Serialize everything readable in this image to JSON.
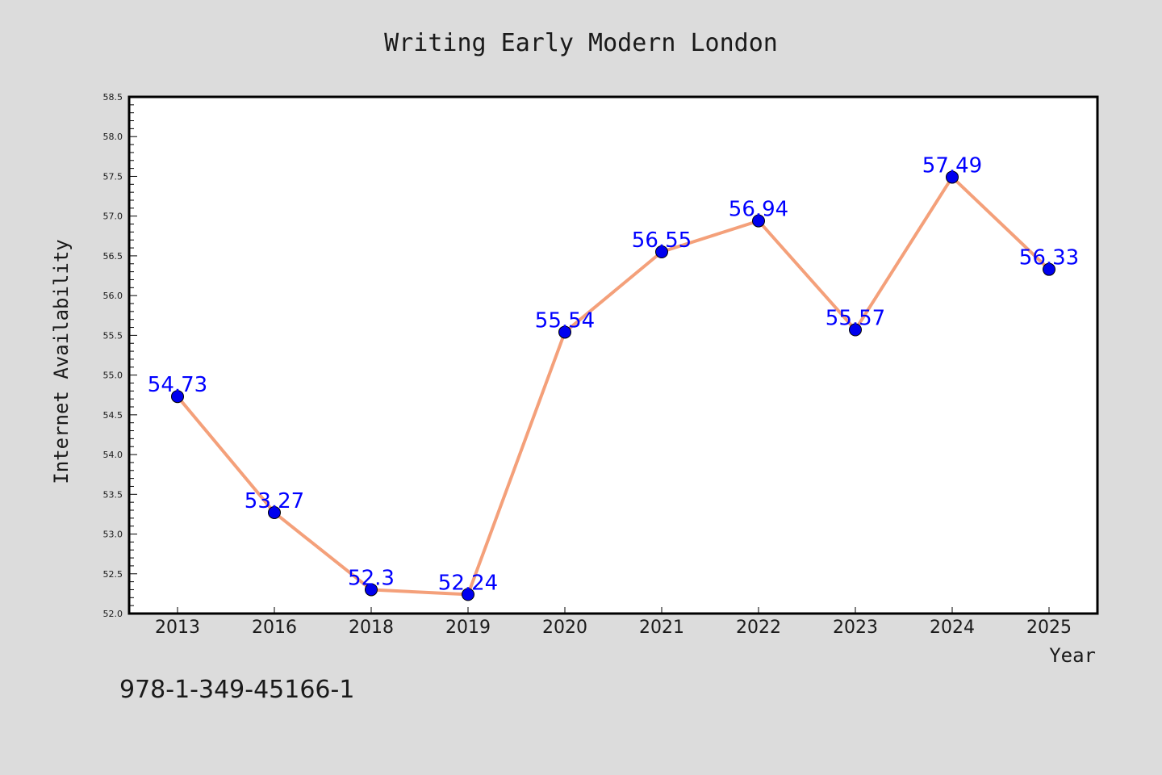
{
  "colors": {
    "background": "#dcdcdc",
    "plot_background": "#ffffff",
    "line": "#f4a07a",
    "marker": "#0000ee",
    "marker_edge": "#000000",
    "data_label": "#0000ff",
    "text": "#1a1a1a"
  },
  "chart_data": {
    "type": "line",
    "title": "Writing Early Modern London",
    "xlabel": "Year",
    "ylabel": "Internet Availability",
    "categories": [
      "2013",
      "2016",
      "2018",
      "2019",
      "2020",
      "2021",
      "2022",
      "2023",
      "2024",
      "2025"
    ],
    "series": [
      {
        "values": [
          54.73,
          53.27,
          52.3,
          52.24,
          55.54,
          56.55,
          56.94,
          55.57,
          57.49,
          56.33
        ],
        "labels": [
          "54.73",
          "53.27",
          "52.3",
          "52.24",
          "55.54",
          "56.55",
          "56.94",
          "55.57",
          "57.49",
          "56.33"
        ]
      }
    ],
    "ylim": [
      52.0,
      58.5
    ],
    "yticks": [
      "52.0",
      "52.5",
      "53.0",
      "53.5",
      "54.0",
      "54.5",
      "55.0",
      "55.5",
      "56.0",
      "56.5",
      "57.0",
      "57.5",
      "58.0",
      "58.5"
    ],
    "grid": false,
    "legend": "none"
  },
  "footer": {
    "isbn": "978-1-349-45166-1"
  }
}
